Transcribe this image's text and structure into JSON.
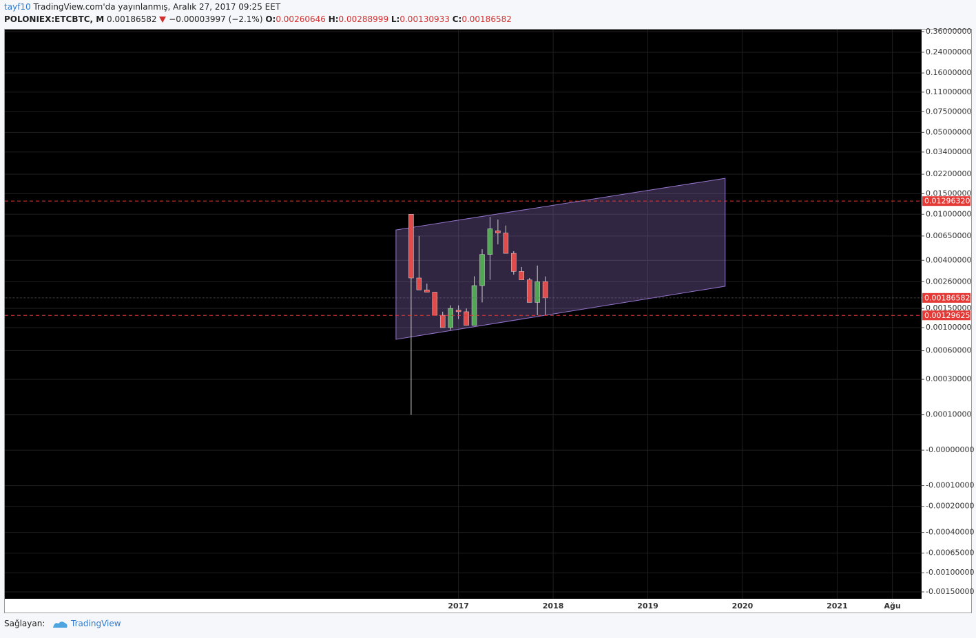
{
  "chart_data": {
    "type": "candlestick",
    "header": {
      "user": "tayf10",
      "published": "TradingView.com'da yayınlanmış, Aralık 27, 2017 09:25 EET",
      "symbol": "POLONIEX:ETCBTC, M",
      "last": "0.00186582",
      "change": "−0.00003997 (−2.1%)",
      "o_label": "O:",
      "o_value": "0.00260646",
      "h_label": "H:",
      "h_value": "0.00288999",
      "l_label": "L:",
      "l_value": "0.00130933",
      "c_label": "C:",
      "c_value": "0.00186582"
    },
    "footer": {
      "provider": "Sağlayan:",
      "brand": "TradingView"
    },
    "x": [
      0,
      1,
      2,
      3,
      4,
      5,
      6,
      7,
      8,
      9,
      10,
      11,
      12,
      13,
      14,
      15,
      16,
      17
    ],
    "open": [
      0.01,
      0.0028,
      0.0022,
      0.0021,
      0.0013,
      0.001,
      0.00145,
      0.0014,
      0.00105,
      0.0024,
      0.0045,
      0.0072,
      0.0069,
      0.0046,
      0.0032,
      0.0027,
      0.0017,
      0.00260646
    ],
    "high": [
      0.01,
      0.0065,
      0.0025,
      0.0021,
      0.0014,
      0.0016,
      0.0016,
      0.0015,
      0.0029,
      0.005,
      0.0095,
      0.009,
      0.008,
      0.0048,
      0.0035,
      0.0028,
      0.0036,
      0.00288999
    ],
    "low": [
      0.0001,
      0.0022,
      0.0021,
      0.0013,
      0.001,
      0.00095,
      0.0012,
      0.00105,
      0.00105,
      0.0017,
      0.0027,
      0.0055,
      0.0046,
      0.003,
      0.0027,
      0.0017,
      0.0013,
      0.00130933
    ],
    "close": [
      0.0028,
      0.0022,
      0.0021,
      0.0013,
      0.001,
      0.0015,
      0.0014,
      0.00105,
      0.0024,
      0.0045,
      0.0075,
      0.0069,
      0.0046,
      0.0032,
      0.0027,
      0.0017,
      0.0026,
      0.00186582
    ],
    "up_color": "#53a653",
    "down_color": "#e04b4b",
    "xlim": [
      -51.5,
      64.7
    ],
    "xticks": [
      {
        "value": 6,
        "label": "2017"
      },
      {
        "value": 18,
        "label": "2018"
      },
      {
        "value": 30,
        "label": "2019"
      },
      {
        "value": 42,
        "label": "2020"
      },
      {
        "value": 54,
        "label": "2021"
      },
      {
        "value": 61,
        "label": "Ağu"
      }
    ],
    "yscale": "symlog",
    "ylinthresh": 0.0001,
    "ylim": [
      -0.00173,
      0.374
    ],
    "yticks": [
      {
        "value": 0.36,
        "label": "0.36000000"
      },
      {
        "value": 0.24,
        "label": "0.24000000"
      },
      {
        "value": 0.16,
        "label": "0.16000000"
      },
      {
        "value": 0.11,
        "label": "0.11000000"
      },
      {
        "value": 0.075,
        "label": "0.07500000"
      },
      {
        "value": 0.05,
        "label": "0.05000000"
      },
      {
        "value": 0.034,
        "label": "0.03400000"
      },
      {
        "value": 0.022,
        "label": "0.02200000"
      },
      {
        "value": 0.015,
        "label": "0.01500000"
      },
      {
        "value": 0.01,
        "label": "0.01000000"
      },
      {
        "value": 0.0065,
        "label": "0.00650000"
      },
      {
        "value": 0.004,
        "label": "0.00400000"
      },
      {
        "value": 0.0026,
        "label": "0.00260000"
      },
      {
        "value": 0.0015,
        "label": "0.00150000"
      },
      {
        "value": 0.001,
        "label": "0.00100000"
      },
      {
        "value": 0.0006,
        "label": "0.00060000"
      },
      {
        "value": 0.0003,
        "label": "0.00030000"
      },
      {
        "value": 0.0001,
        "label": "0.00010000"
      },
      {
        "value": 0,
        "label": "-0.00000000"
      },
      {
        "value": -0.0001,
        "label": "-0.00010000"
      },
      {
        "value": -0.0002,
        "label": "-0.00020000"
      },
      {
        "value": -0.0004,
        "label": "-0.00040000"
      },
      {
        "value": -0.00065,
        "label": "-0.00065000"
      },
      {
        "value": -0.001,
        "label": "-0.00100000"
      },
      {
        "value": -0.0015,
        "label": "-0.00150000"
      }
    ],
    "grid": true,
    "hlines": [
      {
        "value": 0.0129632,
        "label": "0.01296320",
        "color": "#e53935",
        "dash": "dashed"
      },
      {
        "value": 0.00186582,
        "label": "0.00186582",
        "color": "#e53935",
        "dash": "dotted"
      },
      {
        "value": 0.00129625,
        "label": "0.00129625",
        "color": "#e53935",
        "dash": "dashed"
      }
    ],
    "channel": {
      "x": [
        -1.92,
        39.8
      ],
      "upper": [
        0.00733,
        0.0203
      ],
      "lower": [
        0.000774,
        0.00237
      ],
      "color": "#9575cd"
    }
  }
}
